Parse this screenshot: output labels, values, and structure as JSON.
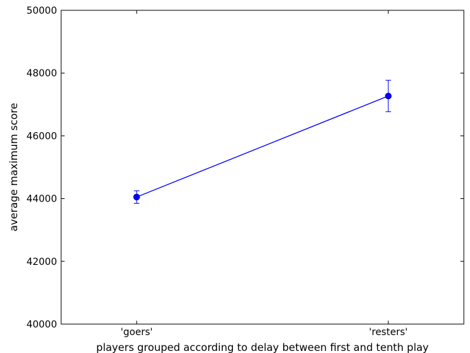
{
  "chart_data": {
    "type": "line",
    "title": "",
    "xlabel": "players grouped according to delay between first and tenth play",
    "ylabel": "average maximum score",
    "categories": [
      "'goers'",
      "'resters'"
    ],
    "series": [
      {
        "values": [
          44050,
          47270
        ],
        "error": [
          200,
          500
        ],
        "color": "#0000ff",
        "marker": "circle"
      }
    ],
    "ylim": [
      40000,
      50000
    ],
    "yticks": [
      40000,
      42000,
      44000,
      46000,
      48000,
      50000
    ],
    "grid": false,
    "legend": "none"
  }
}
